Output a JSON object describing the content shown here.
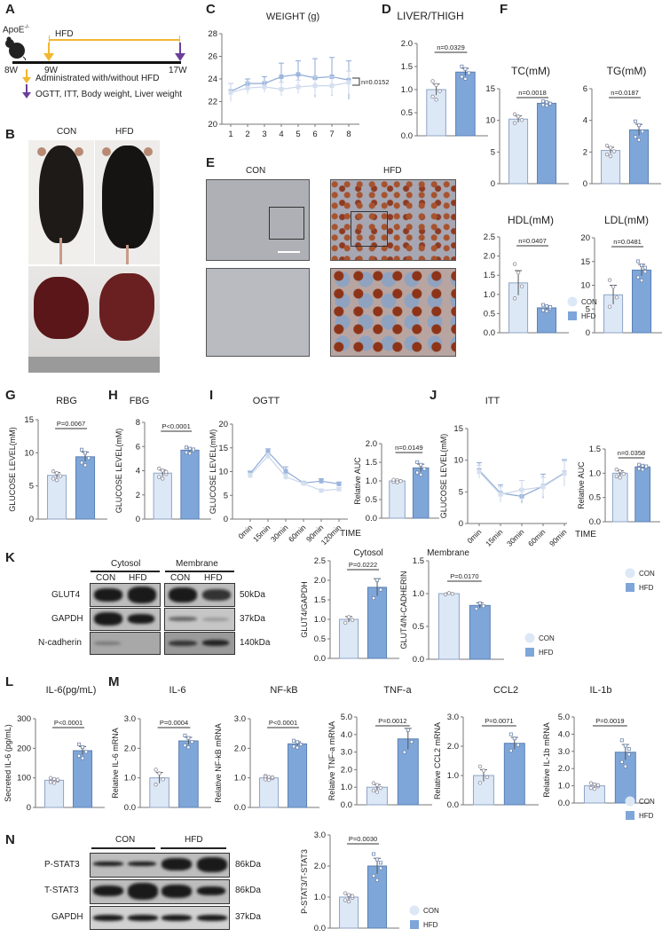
{
  "panels": [
    "A",
    "B",
    "C",
    "D",
    "E",
    "F",
    "G",
    "H",
    "I",
    "J",
    "K",
    "L",
    "M",
    "N"
  ],
  "timeline": {
    "strain": "ApoE",
    "strain_sup": "-/-",
    "hfd_label": "HFD",
    "weeks": [
      "8W",
      "9W",
      "17W"
    ],
    "legend_yellow": "Administrated with/without HFD",
    "legend_purple": "OGTT, ITT, Body weight, Liver weight",
    "colors": {
      "yellow": "#f2b731",
      "purple": "#6b3f98"
    }
  },
  "photos": {
    "con_label": "CON",
    "hfd_label": "HFD"
  },
  "histology": {
    "con_label": "CON",
    "hfd_label": "HFD"
  },
  "western_k": {
    "groups": [
      "Cytosol",
      "Membrane"
    ],
    "lanes": [
      "CON",
      "HFD",
      "CON",
      "HFD"
    ],
    "rows": [
      {
        "label": "GLUT4",
        "kda": "50kDa"
      },
      {
        "label": "GAPDH",
        "kda": "37kDa"
      },
      {
        "label": "N-cadherin",
        "kda": "140kDa"
      }
    ]
  },
  "western_n": {
    "groups": [
      "CON",
      "HFD"
    ],
    "rows": [
      {
        "label": "P-STAT3",
        "kda": "86kDa"
      },
      {
        "label": "T-STAT3",
        "kda": "86kDa"
      },
      {
        "label": "GAPDH",
        "kda": "37kDa"
      }
    ]
  },
  "legends": {
    "con": "CON",
    "hfd": "HFD"
  },
  "colors": {
    "con_fill": "#dde8f6",
    "con_stroke": "#8ea4c4",
    "hfd_fill": "#7fa6d9",
    "hfd_stroke": "#5b80b3"
  },
  "chart_data": [
    {
      "id": "weight",
      "type": "line",
      "title": "WEIGHT (g)",
      "ylabel": "",
      "ylim": [
        20,
        28
      ],
      "yticks": [
        20,
        22,
        24,
        26,
        28
      ],
      "ytick_labels": [
        "20",
        "22",
        "24",
        "26",
        "28"
      ],
      "x": [
        "1",
        "2",
        "3",
        "4",
        "5",
        "6",
        "7",
        "8"
      ],
      "p_label": "n=0.0152",
      "series": [
        {
          "name": "HFD",
          "values": [
            22.9,
            23.6,
            23.6,
            24.2,
            24.4,
            24.1,
            24.2,
            23.9
          ],
          "sem": [
            0.7,
            0.4,
            0.6,
            1.2,
            1.2,
            1.7,
            1.7,
            1.7
          ]
        },
        {
          "name": "CON",
          "values": [
            22.8,
            23.2,
            23.3,
            23.1,
            23.3,
            23.4,
            23.4,
            23.7
          ],
          "sem": [
            0.8,
            0.5,
            0.5,
            0.6,
            0.6,
            0.8,
            0.8,
            1.0
          ]
        }
      ]
    },
    {
      "id": "liver_thigh",
      "type": "bar",
      "title": "LIVER/THIGH",
      "ylabel": "",
      "ylim": [
        0,
        2
      ],
      "yticks": [
        0,
        0.5,
        1,
        1.5,
        2
      ],
      "ytick_labels": [
        "0.0",
        "0.5",
        "1.0",
        "1.5",
        "2.0"
      ],
      "p_label": "n=0.0329",
      "series": [
        {
          "name": "CON",
          "mean": 1.0,
          "sem": 0.12,
          "n": 5
        },
        {
          "name": "HFD",
          "mean": 1.38,
          "sem": 0.08,
          "n": 5
        }
      ]
    },
    {
      "id": "tc",
      "type": "bar",
      "title": "TC(mM)",
      "ylabel": "",
      "ylim": [
        0,
        15
      ],
      "yticks": [
        0,
        5,
        10,
        15
      ],
      "ytick_labels": [
        "0",
        "5",
        "10",
        "15"
      ],
      "p_label": "n=0.0018",
      "series": [
        {
          "name": "CON",
          "mean": 10.2,
          "sem": 0.5,
          "n": 4
        },
        {
          "name": "HFD",
          "mean": 12.7,
          "sem": 0.2,
          "n": 5
        }
      ]
    },
    {
      "id": "tg",
      "type": "bar",
      "title": "TG(mM)",
      "ylabel": "",
      "ylim": [
        0,
        6
      ],
      "yticks": [
        0,
        2,
        4,
        6
      ],
      "ytick_labels": [
        "0",
        "2",
        "4",
        "6"
      ],
      "p_label": "n=0.0187",
      "series": [
        {
          "name": "CON",
          "mean": 2.1,
          "sem": 0.2,
          "n": 5
        },
        {
          "name": "HFD",
          "mean": 3.4,
          "sem": 0.35,
          "n": 5
        }
      ]
    },
    {
      "id": "hdl",
      "type": "bar",
      "title": "HDL(mM)",
      "ylabel": "",
      "ylim": [
        0,
        2.5
      ],
      "yticks": [
        0,
        0.5,
        1,
        1.5,
        2,
        2.5
      ],
      "ytick_labels": [
        "0.0",
        "0.5",
        "1.0",
        "1.5",
        "2.0",
        "2.5"
      ],
      "p_label": "n=0.0407",
      "series": [
        {
          "name": "CON",
          "mean": 1.3,
          "sem": 0.32,
          "n": 4
        },
        {
          "name": "HFD",
          "mean": 0.65,
          "sem": 0.05,
          "n": 6
        }
      ]
    },
    {
      "id": "ldl",
      "type": "bar",
      "title": "LDL(mM)",
      "ylabel": "",
      "ylim": [
        0,
        20
      ],
      "yticks": [
        0,
        5,
        10,
        15,
        20
      ],
      "ytick_labels": [
        "0",
        "5",
        "10",
        "15",
        "20"
      ],
      "p_label": "n=0.0481",
      "series": [
        {
          "name": "CON",
          "mean": 8.0,
          "sem": 2.0,
          "n": 4
        },
        {
          "name": "HFD",
          "mean": 13.2,
          "sem": 1.2,
          "n": 6
        }
      ]
    },
    {
      "id": "rbg",
      "type": "bar",
      "title": "RBG",
      "ylabel": "GLUCOSE LEVEL(mM)",
      "ylim": [
        0,
        15
      ],
      "yticks": [
        0,
        5,
        10,
        15
      ],
      "ytick_labels": [
        "0",
        "5",
        "10",
        "15"
      ],
      "p_label": "P=0.0067",
      "series": [
        {
          "name": "CON",
          "mean": 6.6,
          "sem": 0.4,
          "n": 5
        },
        {
          "name": "HFD",
          "mean": 9.4,
          "sem": 0.7,
          "n": 5
        }
      ]
    },
    {
      "id": "fbg",
      "type": "bar",
      "title": "FBG",
      "ylabel": "GLUCOSE LEVEL(mM)",
      "ylim": [
        0,
        8
      ],
      "yticks": [
        0,
        2,
        4,
        6,
        8
      ],
      "ytick_labels": [
        "0",
        "2",
        "4",
        "6",
        "8"
      ],
      "p_label": "P<0.0001",
      "series": [
        {
          "name": "CON",
          "mean": 3.8,
          "sem": 0.25,
          "n": 6
        },
        {
          "name": "HFD",
          "mean": 5.7,
          "sem": 0.15,
          "n": 6
        }
      ]
    },
    {
      "id": "ogtt",
      "type": "line",
      "title": "OGTT",
      "ylabel": "GLUCOSE LEVEL(mM)",
      "xlabel": "TIME",
      "ylim": [
        0,
        20
      ],
      "yticks": [
        0,
        5,
        10,
        15,
        20
      ],
      "ytick_labels": [
        "0",
        "5",
        "10",
        "15",
        "20"
      ],
      "x": [
        "0min",
        "15min",
        "30min",
        "60min",
        "90min",
        "120min"
      ],
      "series": [
        {
          "name": "HFD",
          "values": [
            9.6,
            14.2,
            10.1,
            7.6,
            8.0,
            7.4
          ],
          "sem": [
            0.5,
            0.6,
            0.9,
            0.3,
            0.5,
            0.4
          ]
        },
        {
          "name": "CON",
          "values": [
            9.2,
            13.3,
            8.9,
            7.5,
            6.0,
            6.3
          ],
          "sem": [
            0.5,
            0.6,
            0.6,
            0.3,
            0.3,
            0.3
          ]
        }
      ]
    },
    {
      "id": "ogtt_auc",
      "type": "bar",
      "title": "",
      "ylabel": "Relative AUC",
      "ylim": [
        0,
        2
      ],
      "yticks": [
        0,
        0.5,
        1,
        1.5,
        2
      ],
      "ytick_labels": [
        "0.0",
        "0.5",
        "1.0",
        "1.5",
        "2.0"
      ],
      "p_label": "n=0.0149",
      "series": [
        {
          "name": "CON",
          "mean": 1.0,
          "sem": 0.02,
          "n": 5
        },
        {
          "name": "HFD",
          "mean": 1.35,
          "sem": 0.1,
          "n": 5
        }
      ]
    },
    {
      "id": "itt",
      "type": "line",
      "title": "ITT",
      "ylabel": "GLUCOSE LEVEL(mM)",
      "xlabel": "TIME",
      "ylim": [
        0,
        15
      ],
      "yticks": [
        0,
        5,
        10,
        15
      ],
      "ytick_labels": [
        "0",
        "5",
        "10",
        "15"
      ],
      "x": [
        "0min",
        "15min",
        "30min",
        "60min",
        "90min"
      ],
      "series": [
        {
          "name": "HFD",
          "values": [
            8.4,
            4.8,
            4.3,
            5.9,
            8.0
          ],
          "sem": [
            1.2,
            1.3,
            1.1,
            1.9,
            2.1
          ]
        },
        {
          "name": "CON",
          "values": [
            8.2,
            4.6,
            5.3,
            5.8,
            7.9
          ],
          "sem": [
            1.0,
            1.2,
            1.5,
            1.5,
            2.0
          ]
        }
      ]
    },
    {
      "id": "itt_auc",
      "type": "bar",
      "title": "",
      "ylabel": "Relative AUC",
      "ylim": [
        0,
        1.5
      ],
      "yticks": [
        0,
        0.5,
        1,
        1.5
      ],
      "ytick_labels": [
        "0.0",
        "0.5",
        "1.0",
        "1.5"
      ],
      "p_label": "n=0.0358",
      "series": [
        {
          "name": "CON",
          "mean": 1.0,
          "sem": 0.05,
          "n": 5
        },
        {
          "name": "HFD",
          "mean": 1.13,
          "sem": 0.03,
          "n": 6
        }
      ]
    },
    {
      "id": "glut4_cytosol",
      "type": "bar",
      "title": "Cytosol",
      "ylabel": "GLUT4/GAPDH",
      "ylim": [
        0,
        2.5
      ],
      "yticks": [
        0,
        0.5,
        1,
        1.5,
        2,
        2.5
      ],
      "ytick_labels": [
        "0.0",
        "0.5",
        "1.0",
        "1.5",
        "2.0",
        "2.5"
      ],
      "p_label": "P=0.0222",
      "series": [
        {
          "name": "CON",
          "mean": 1.0,
          "sem": 0.07,
          "n": 3
        },
        {
          "name": "HFD",
          "mean": 1.82,
          "sem": 0.22,
          "n": 3
        }
      ]
    },
    {
      "id": "glut4_membrane",
      "type": "bar",
      "title": "Membrane",
      "ylabel": "GLUT4/N-CADHERIN",
      "ylim": [
        0,
        1.5
      ],
      "yticks": [
        0,
        0.5,
        1,
        1.5
      ],
      "ytick_labels": [
        "0.0",
        "0.5",
        "1.0",
        "1.5"
      ],
      "p_label": "P=0.0170",
      "series": [
        {
          "name": "CON",
          "mean": 1.0,
          "sem": 0.01,
          "n": 3
        },
        {
          "name": "HFD",
          "mean": 0.82,
          "sem": 0.04,
          "n": 3
        }
      ]
    },
    {
      "id": "il6_secreted",
      "type": "bar",
      "title": "IL-6(pg/mL)",
      "ylabel": "Secreted IL-6 (pg/mL)",
      "ylim": [
        0,
        300
      ],
      "yticks": [
        0,
        100,
        200,
        300
      ],
      "ytick_labels": [
        "0",
        "100",
        "200",
        "300"
      ],
      "p_label": "P<0.0001",
      "series": [
        {
          "name": "CON",
          "mean": 92,
          "sem": 5,
          "n": 6
        },
        {
          "name": "HFD",
          "mean": 192,
          "sem": 14,
          "n": 5
        }
      ]
    },
    {
      "id": "il6_mrna",
      "type": "bar",
      "title": "IL-6",
      "ylabel": "Relative IL-6 mRNA",
      "ylim": [
        0,
        3
      ],
      "yticks": [
        0,
        1,
        2,
        3
      ],
      "ytick_labels": [
        "0.0",
        "1.0",
        "2.0",
        "3.0"
      ],
      "p_label": "P=0.0004",
      "series": [
        {
          "name": "CON",
          "mean": 1.0,
          "sem": 0.18,
          "n": 4
        },
        {
          "name": "HFD",
          "mean": 2.25,
          "sem": 0.12,
          "n": 5
        }
      ]
    },
    {
      "id": "nfkb_mrna",
      "type": "bar",
      "title": "NF-kB",
      "ylabel": "Relative NF-kB mRNA",
      "ylim": [
        0,
        3
      ],
      "yticks": [
        0,
        1,
        2,
        3
      ],
      "ytick_labels": [
        "0.0",
        "1.0",
        "2.0",
        "3.0"
      ],
      "p_label": "P<0.0001",
      "series": [
        {
          "name": "CON",
          "mean": 1.0,
          "sem": 0.04,
          "n": 7
        },
        {
          "name": "HFD",
          "mean": 2.15,
          "sem": 0.07,
          "n": 5
        }
      ]
    },
    {
      "id": "tnfa_mrna",
      "type": "bar",
      "title": "TNF-a",
      "ylabel": "Relative TNF-a mRNA",
      "ylim": [
        0,
        5
      ],
      "yticks": [
        0,
        1,
        2,
        3,
        4,
        5
      ],
      "ytick_labels": [
        "0.0",
        "1.0",
        "2.0",
        "3.0",
        "4.0",
        "5.0"
      ],
      "p_label": "P=0.0012",
      "series": [
        {
          "name": "CON",
          "mean": 1.0,
          "sem": 0.15,
          "n": 5
        },
        {
          "name": "HFD",
          "mean": 3.75,
          "sem": 0.6,
          "n": 3
        }
      ]
    },
    {
      "id": "ccl2_mrna",
      "type": "bar",
      "title": "CCL2",
      "ylabel": "Relative CCL2 mRNA",
      "ylim": [
        0,
        3
      ],
      "yticks": [
        0,
        1,
        2,
        3
      ],
      "ytick_labels": [
        "0.0",
        "1.0",
        "2.0",
        "3.0"
      ],
      "p_label": "P=0.0071",
      "series": [
        {
          "name": "CON",
          "mean": 1.0,
          "sem": 0.2,
          "n": 4
        },
        {
          "name": "HFD",
          "mean": 2.1,
          "sem": 0.2,
          "n": 4
        }
      ]
    },
    {
      "id": "il1b_mrna",
      "type": "bar",
      "title": "IL-1b",
      "ylabel": "Relative IL-1b mRNA",
      "ylim": [
        0,
        5
      ],
      "yticks": [
        0,
        1,
        2,
        3,
        4,
        5
      ],
      "ytick_labels": [
        "0.0",
        "1.0",
        "2.0",
        "3.0",
        "4.0",
        "5.0"
      ],
      "p_label": "P=0.0019",
      "series": [
        {
          "name": "CON",
          "mean": 1.0,
          "sem": 0.1,
          "n": 6
        },
        {
          "name": "HFD",
          "mean": 2.95,
          "sem": 0.45,
          "n": 6
        }
      ]
    },
    {
      "id": "pstat3_ratio",
      "type": "bar",
      "title": "",
      "ylabel": "P-STAT3/T-STAT3",
      "ylim": [
        0,
        3
      ],
      "yticks": [
        0,
        1,
        2,
        3
      ],
      "ytick_labels": [
        "0.0",
        "1.0",
        "2.0",
        "3.0"
      ],
      "p_label": "P=0.0030",
      "series": [
        {
          "name": "CON",
          "mean": 1.0,
          "sem": 0.08,
          "n": 6
        },
        {
          "name": "HFD",
          "mean": 2.0,
          "sem": 0.25,
          "n": 6
        }
      ]
    }
  ]
}
